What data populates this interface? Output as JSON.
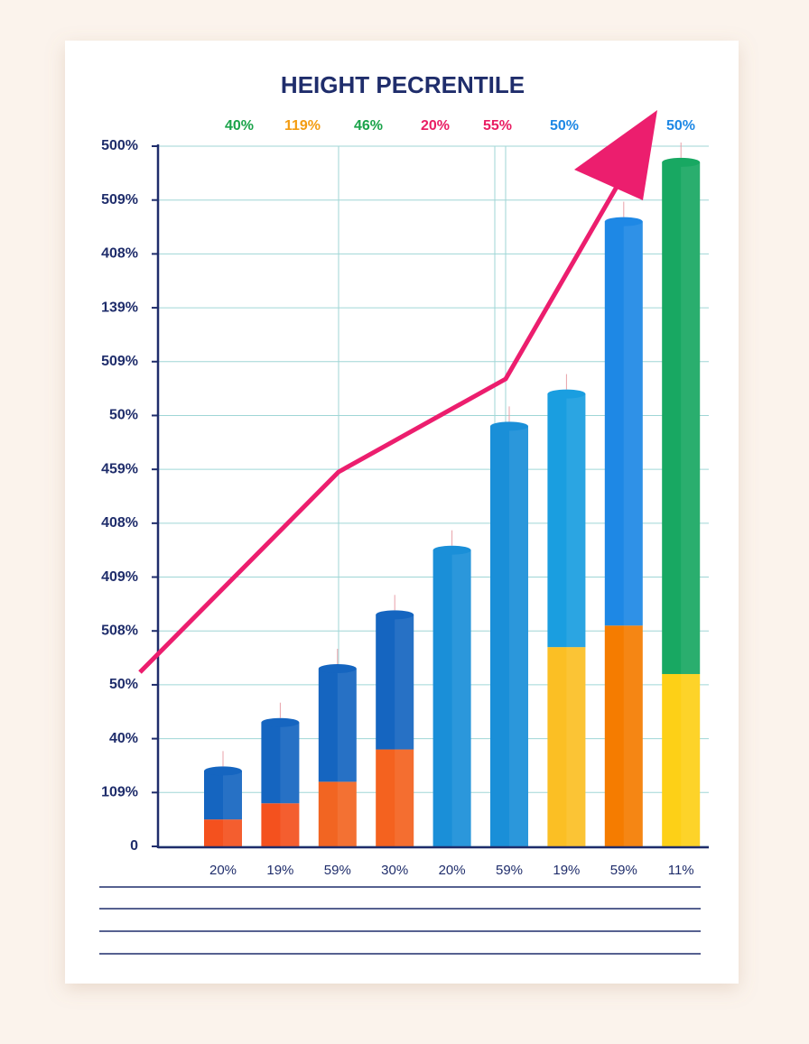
{
  "chart_data": {
    "type": "bar",
    "stacked": true,
    "title": "HEIGHT PECRENTILE",
    "header_labels": [
      {
        "text": "40%",
        "color": "#1aa34a"
      },
      {
        "text": "119%",
        "color": "#f39c12"
      },
      {
        "text": "46%",
        "color": "#1aa34a"
      },
      {
        "text": "20%",
        "color": "#e91e63"
      },
      {
        "text": "55%",
        "color": "#e91e63"
      },
      {
        "text": "50%",
        "color": "#1e88e5"
      },
      {
        "text": "50%",
        "color": "#1e88e5"
      }
    ],
    "categories": [
      "20%",
      "19%",
      "59%",
      "30%",
      "20%",
      "59%",
      "19%",
      "59%",
      "11%"
    ],
    "series": [
      {
        "colors": [
          "#f4511e",
          "#f4511e",
          "#f26522",
          "#f4621f",
          "#f4621f",
          "#f4621f",
          "#fbbf24",
          "#f57c00",
          "#fdd017"
        ],
        "values": [
          0.5,
          0.8,
          1.2,
          1.8,
          null,
          null,
          3.7,
          4.1,
          3.2
        ]
      },
      {
        "colors": [
          "#1565c0",
          "#1565c0",
          "#1565c0",
          "#1565c0",
          "#1a8fd8",
          "#1a8fd8",
          "#1a9ee0",
          "#1e88e5",
          "#18a862"
        ],
        "values": [
          0.9,
          1.5,
          2.1,
          2.5,
          5.5,
          7.8,
          4.7,
          7.5,
          9.5
        ]
      }
    ],
    "ylim": [
      0,
      13
    ],
    "yticks": [
      0,
      {
        "value": 1,
        "label": "109%"
      },
      {
        "value": 2,
        "label": "40%"
      },
      {
        "value": 3,
        "label": "50%"
      },
      {
        "value": 4,
        "label": "508%"
      },
      {
        "value": 5,
        "label": "409%"
      },
      {
        "value": 6,
        "label": "408%"
      },
      {
        "value": 7,
        "label": "459%"
      },
      {
        "value": 8,
        "label": "50%"
      },
      {
        "value": 9,
        "label": "509%"
      },
      {
        "value": 10,
        "label": "139%"
      },
      {
        "value": 11,
        "label": "408%"
      },
      {
        "value": 12,
        "label": "509%"
      },
      {
        "value": 13,
        "label": "500%"
      }
    ],
    "grid": true
  }
}
